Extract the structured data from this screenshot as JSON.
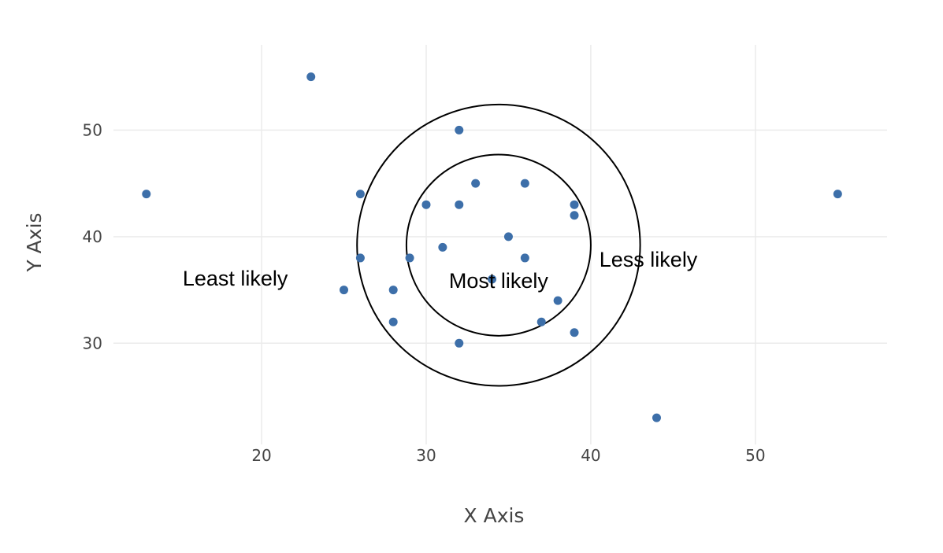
{
  "chart_data": {
    "type": "scatter",
    "xlabel": "X Axis",
    "ylabel": "Y Axis",
    "xlim": [
      11,
      58
    ],
    "ylim": [
      20.5,
      58
    ],
    "x_ticks": [
      20,
      30,
      40,
      50
    ],
    "y_ticks": [
      30,
      40,
      50
    ],
    "grid": true,
    "marker_color": "#3d6fa9",
    "points": [
      {
        "x": 13,
        "y": 44
      },
      {
        "x": 23,
        "y": 55
      },
      {
        "x": 25,
        "y": 35
      },
      {
        "x": 26,
        "y": 44
      },
      {
        "x": 26,
        "y": 38
      },
      {
        "x": 28,
        "y": 35
      },
      {
        "x": 28,
        "y": 32
      },
      {
        "x": 29,
        "y": 38
      },
      {
        "x": 30,
        "y": 43
      },
      {
        "x": 31,
        "y": 39
      },
      {
        "x": 32,
        "y": 50
      },
      {
        "x": 32,
        "y": 43
      },
      {
        "x": 32,
        "y": 30
      },
      {
        "x": 33,
        "y": 45
      },
      {
        "x": 34,
        "y": 36
      },
      {
        "x": 35,
        "y": 40
      },
      {
        "x": 36,
        "y": 45
      },
      {
        "x": 36,
        "y": 38
      },
      {
        "x": 37,
        "y": 32
      },
      {
        "x": 38,
        "y": 34
      },
      {
        "x": 39,
        "y": 43
      },
      {
        "x": 39,
        "y": 42
      },
      {
        "x": 39,
        "y": 31
      },
      {
        "x": 44,
        "y": 23
      },
      {
        "x": 55,
        "y": 44
      }
    ],
    "circles": [
      {
        "cx": 34.4,
        "cy": 39.2,
        "rx": 5.6,
        "ry": 8.5
      },
      {
        "cx": 34.4,
        "cy": 39.2,
        "rx": 8.6,
        "ry": 13.2
      }
    ],
    "annotations": [
      {
        "text": "Most likely",
        "x": 34.4,
        "y": 35.2
      },
      {
        "text": "Less likely",
        "x": 43.5,
        "y": 37.2
      },
      {
        "text": "Least likely",
        "x": 18.4,
        "y": 35.4
      }
    ]
  }
}
